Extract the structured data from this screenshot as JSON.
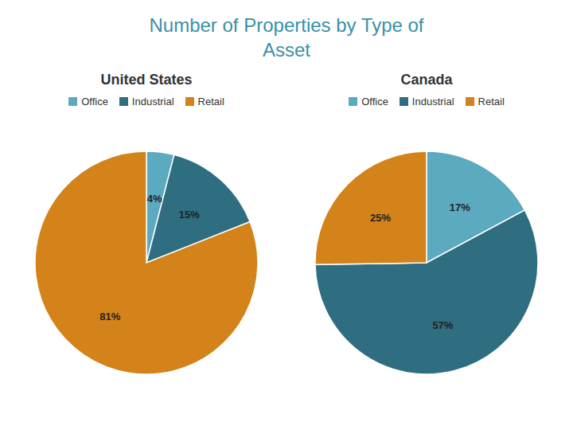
{
  "title": "Number of Properties by Type of\nAsset",
  "chart_data": [
    {
      "type": "pie",
      "title": "United States",
      "categories": [
        "Office",
        "Industrial",
        "Retail"
      ],
      "values": [
        4,
        15,
        81
      ],
      "value_labels": [
        "4%",
        "15%",
        "81%"
      ],
      "colors": [
        "#5baac0",
        "#2e6e80",
        "#d4831a"
      ],
      "data_labels": true,
      "legend": "top"
    },
    {
      "type": "pie",
      "title": "Canada",
      "categories": [
        "Office",
        "Industrial",
        "Retail"
      ],
      "values": [
        17,
        57,
        25
      ],
      "value_labels": [
        "17%",
        "57%",
        "25%"
      ],
      "colors": [
        "#5baac0",
        "#2e6e80",
        "#d4831a"
      ],
      "data_labels": true,
      "legend": "top"
    }
  ]
}
